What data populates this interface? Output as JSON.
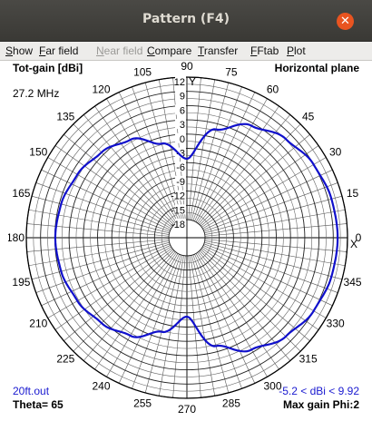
{
  "window": {
    "title": "Pattern  (F4)",
    "close_glyph": "✕"
  },
  "menu": [
    {
      "label": "Show",
      "ul": "S",
      "rest": "how",
      "enabled": true
    },
    {
      "label": "Far field",
      "ul": "F",
      "rest": "ar field",
      "enabled": true
    },
    {
      "label": "Near field",
      "ul": "N",
      "rest": "ear field",
      "enabled": false
    },
    {
      "label": "Compare",
      "ul": "C",
      "rest": "ompare",
      "enabled": true
    },
    {
      "label": "Transfer",
      "ul": "T",
      "rest": "ransfer",
      "enabled": true
    },
    {
      "label": "FFtab",
      "ul": "F",
      "rest": "Ftab",
      "enabled": true
    },
    {
      "label": "Plot",
      "ul": "P",
      "rest": "lot",
      "enabled": true
    }
  ],
  "plot": {
    "top_left": "Tot-gain [dBi]",
    "frequency": "27.2 MHz",
    "top_right": "Horizontal plane",
    "axis_y_label": "Y",
    "axis_x_label": "X",
    "file_name": "20ft.out",
    "gain_range": "-5.2 < dBi < 9.92",
    "bottom_left": "Theta= 65",
    "bottom_right": "Max gain Phi:2"
  },
  "chart_data": {
    "type": "polar",
    "trace_color": "#1010cc",
    "radial_ticks": [
      "12",
      "9",
      "6",
      "3",
      "0",
      "-3",
      "-6",
      "-9",
      "-12",
      "-15",
      "-18"
    ],
    "radial_tick_values": [
      12,
      9,
      6,
      3,
      0,
      -3,
      -6,
      -9,
      -12,
      -15,
      -18
    ],
    "angle_ticks": [
      0,
      15,
      30,
      45,
      60,
      75,
      90,
      105,
      120,
      135,
      150,
      165,
      180,
      195,
      210,
      225,
      240,
      255,
      270,
      285,
      300,
      315,
      330,
      345
    ],
    "angular_grid_step_deg": 5,
    "pattern": {
      "phi_deg": [
        0,
        15,
        30,
        45,
        60,
        75,
        90,
        105,
        120,
        135,
        150,
        165,
        180
      ],
      "gain_dbi": [
        9.92,
        9.7,
        9.0,
        7.6,
        5.4,
        1.8,
        -5.2,
        -1.3,
        2.0,
        3.6,
        4.8,
        5.6,
        5.9
      ]
    }
  }
}
